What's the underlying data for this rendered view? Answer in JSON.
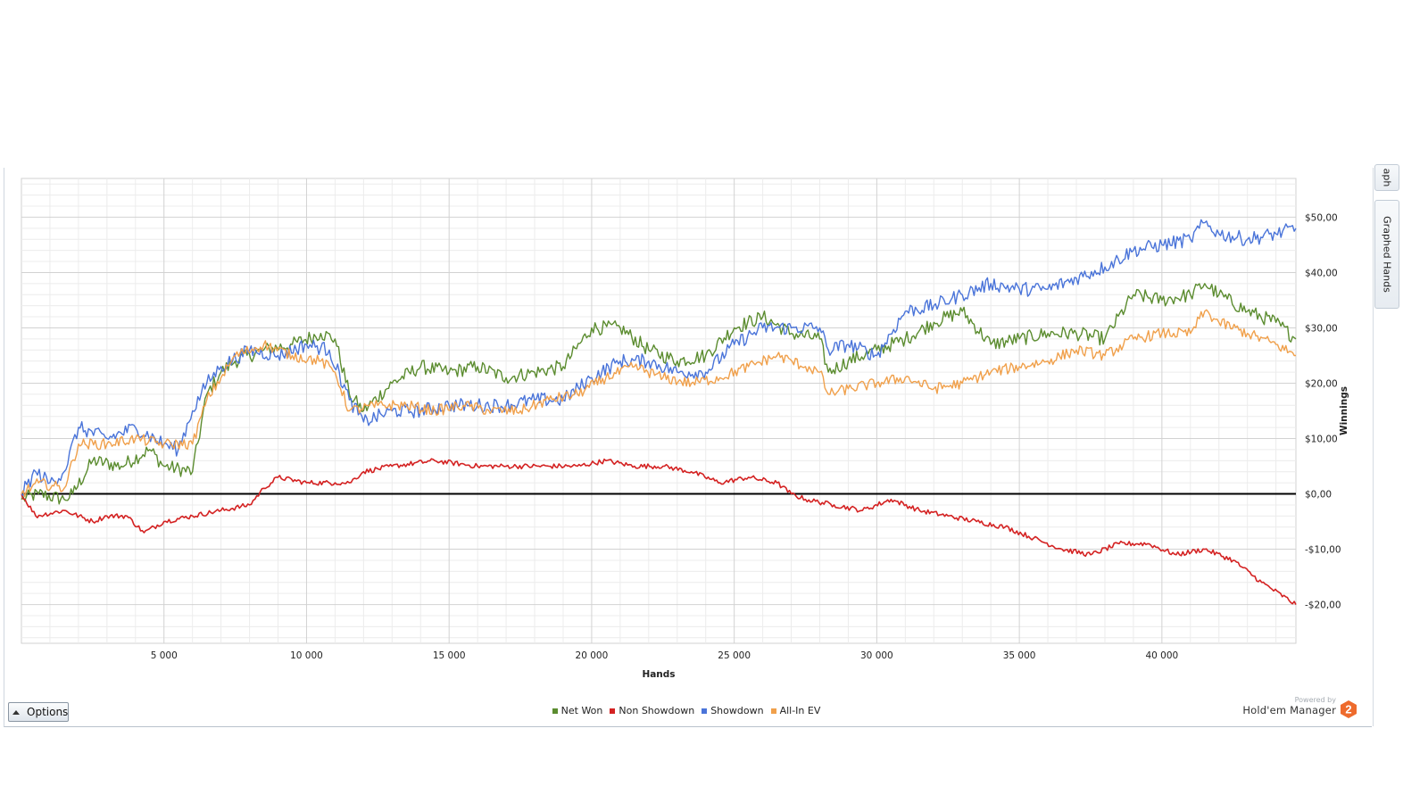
{
  "chart_data": {
    "type": "line",
    "title": "",
    "xlabel": "Hands",
    "ylabel": "Winnings",
    "x_ticks": [
      5000,
      10000,
      15000,
      20000,
      25000,
      30000,
      35000,
      40000
    ],
    "x_tick_labels": [
      "5 000",
      "10 000",
      "15 000",
      "20 000",
      "25 000",
      "30 000",
      "35 000",
      "40 000"
    ],
    "y_ticks": [
      -20,
      -10,
      0,
      10,
      20,
      30,
      40,
      50
    ],
    "y_tick_labels": [
      "-$20,00",
      "-$10,00",
      "$0,00",
      "$10,00",
      "$20,00",
      "$30,00",
      "$40,00",
      "$50,00"
    ],
    "xlim": [
      0,
      44700
    ],
    "ylim": [
      -27,
      57
    ],
    "grid": true,
    "legend_position": "bottom",
    "series": [
      {
        "name": "Net Won",
        "color": "#5b8c2f",
        "x": [
          0,
          600,
          1500,
          1800,
          2500,
          3500,
          4500,
          5000,
          6000,
          6500,
          7000,
          7500,
          8500,
          9500,
          10500,
          11000,
          11500,
          12000,
          13000,
          14000,
          15000,
          16000,
          17000,
          18000,
          19000,
          20000,
          21000,
          22000,
          23000,
          24000,
          25000,
          26000,
          27000,
          28000,
          28300,
          29000,
          30000,
          31000,
          32000,
          33000,
          34000,
          35000,
          36000,
          37000,
          38000,
          39000,
          40000,
          41000,
          41500,
          42000,
          43000,
          44000,
          44700
        ],
        "y": [
          -1,
          0,
          -1,
          0,
          6,
          5,
          8,
          5,
          4,
          18,
          22,
          24,
          26,
          27,
          29,
          28,
          18,
          15,
          20,
          23,
          22,
          23,
          21,
          22,
          23,
          30,
          30,
          26,
          24,
          25,
          30,
          32,
          29,
          28,
          22,
          24,
          26,
          28,
          31,
          33,
          27,
          28,
          29,
          29,
          28,
          36,
          35,
          36,
          38,
          36,
          33,
          31,
          28
        ]
      },
      {
        "name": "Non Showdown",
        "color": "#d42222",
        "x": [
          0,
          500,
          1500,
          2500,
          3000,
          3700,
          4300,
          5000,
          6000,
          7000,
          8000,
          8500,
          9000,
          10000,
          11000,
          11500,
          12000,
          13000,
          14500,
          16000,
          17000,
          18500,
          19500,
          20500,
          21500,
          22500,
          23500,
          24500,
          25500,
          26500,
          27000,
          27500,
          28500,
          29500,
          30500,
          31500,
          32500,
          33500,
          34500,
          35500,
          36500,
          37500,
          38500,
          39500,
          40500,
          41500,
          42500,
          43500,
          44700
        ],
        "y": [
          0,
          -4,
          -3,
          -5,
          -4,
          -4,
          -7,
          -5,
          -4,
          -3,
          -2,
          1,
          3,
          2,
          2,
          2,
          4,
          5,
          6,
          5,
          5,
          5,
          5,
          6,
          5,
          5,
          4,
          2,
          3,
          2,
          0,
          -1,
          -2,
          -3,
          -1,
          -3,
          -4,
          -5,
          -6,
          -8,
          -10,
          -11,
          -9,
          -9,
          -11,
          -10,
          -12,
          -16,
          -20
        ]
      },
      {
        "name": "Showdown",
        "color": "#4a74d9",
        "x": [
          0,
          500,
          1000,
          1500,
          2000,
          3000,
          4000,
          5000,
          5500,
          6000,
          6500,
          7000,
          8000,
          9000,
          10000,
          10800,
          11500,
          12000,
          13000,
          14000,
          15000,
          16000,
          17000,
          18000,
          19000,
          20000,
          21000,
          22000,
          23000,
          24000,
          25000,
          26000,
          27000,
          28000,
          28300,
          29000,
          30000,
          31000,
          32000,
          33000,
          34000,
          35000,
          36000,
          37000,
          38000,
          39000,
          40000,
          41000,
          41500,
          42000,
          43000,
          44000,
          44700
        ],
        "y": [
          0,
          4,
          2,
          4,
          12,
          10,
          12,
          9,
          8,
          15,
          20,
          23,
          26,
          25,
          27,
          26,
          17,
          13,
          15,
          15,
          16,
          16,
          16,
          17,
          17,
          21,
          24,
          24,
          22,
          22,
          27,
          30,
          30,
          30,
          26,
          27,
          25,
          33,
          34,
          36,
          38,
          37,
          37,
          39,
          41,
          44,
          45,
          46,
          49,
          47,
          46,
          47,
          48
        ]
      },
      {
        "name": "All-In EV",
        "color": "#f0a04b",
        "x": [
          0,
          600,
          1500,
          2000,
          3000,
          4000,
          5000,
          6000,
          6500,
          7000,
          7500,
          8500,
          9500,
          10500,
          11000,
          11500,
          12500,
          13500,
          14500,
          15500,
          16500,
          17500,
          18500,
          19500,
          20500,
          21500,
          22500,
          23500,
          24500,
          25500,
          26500,
          27500,
          28000,
          28300,
          29000,
          30000,
          31000,
          32000,
          33000,
          34000,
          35000,
          36000,
          37000,
          38000,
          39000,
          40000,
          41000,
          41500,
          42000,
          43000,
          44000,
          44700
        ],
        "y": [
          0,
          2,
          1,
          9,
          9,
          10,
          9,
          9,
          17,
          21,
          25,
          27,
          25,
          24,
          22,
          15,
          16,
          16,
          15,
          16,
          15,
          15,
          17,
          18,
          21,
          23,
          21,
          20,
          21,
          23,
          25,
          23,
          22,
          18,
          19,
          20,
          21,
          19,
          20,
          22,
          23,
          24,
          26,
          25,
          28,
          29,
          29,
          33,
          31,
          29,
          27,
          25
        ]
      }
    ]
  },
  "legend": {
    "items": [
      {
        "label": "Net Won",
        "color": "#5b8c2f"
      },
      {
        "label": "Non Showdown",
        "color": "#d42222"
      },
      {
        "label": "Showdown",
        "color": "#4a74d9"
      },
      {
        "label": "All-In EV",
        "color": "#f0a04b"
      }
    ]
  },
  "toolbar": {
    "options_label": "Options"
  },
  "side_tabs": {
    "top_label": "aph",
    "main_label": "Graphed Hands"
  },
  "brand": {
    "powered_by": "Powered by",
    "name": "Hold'em Manager",
    "logo_text": "2",
    "logo_color": "#ee6b2d"
  }
}
